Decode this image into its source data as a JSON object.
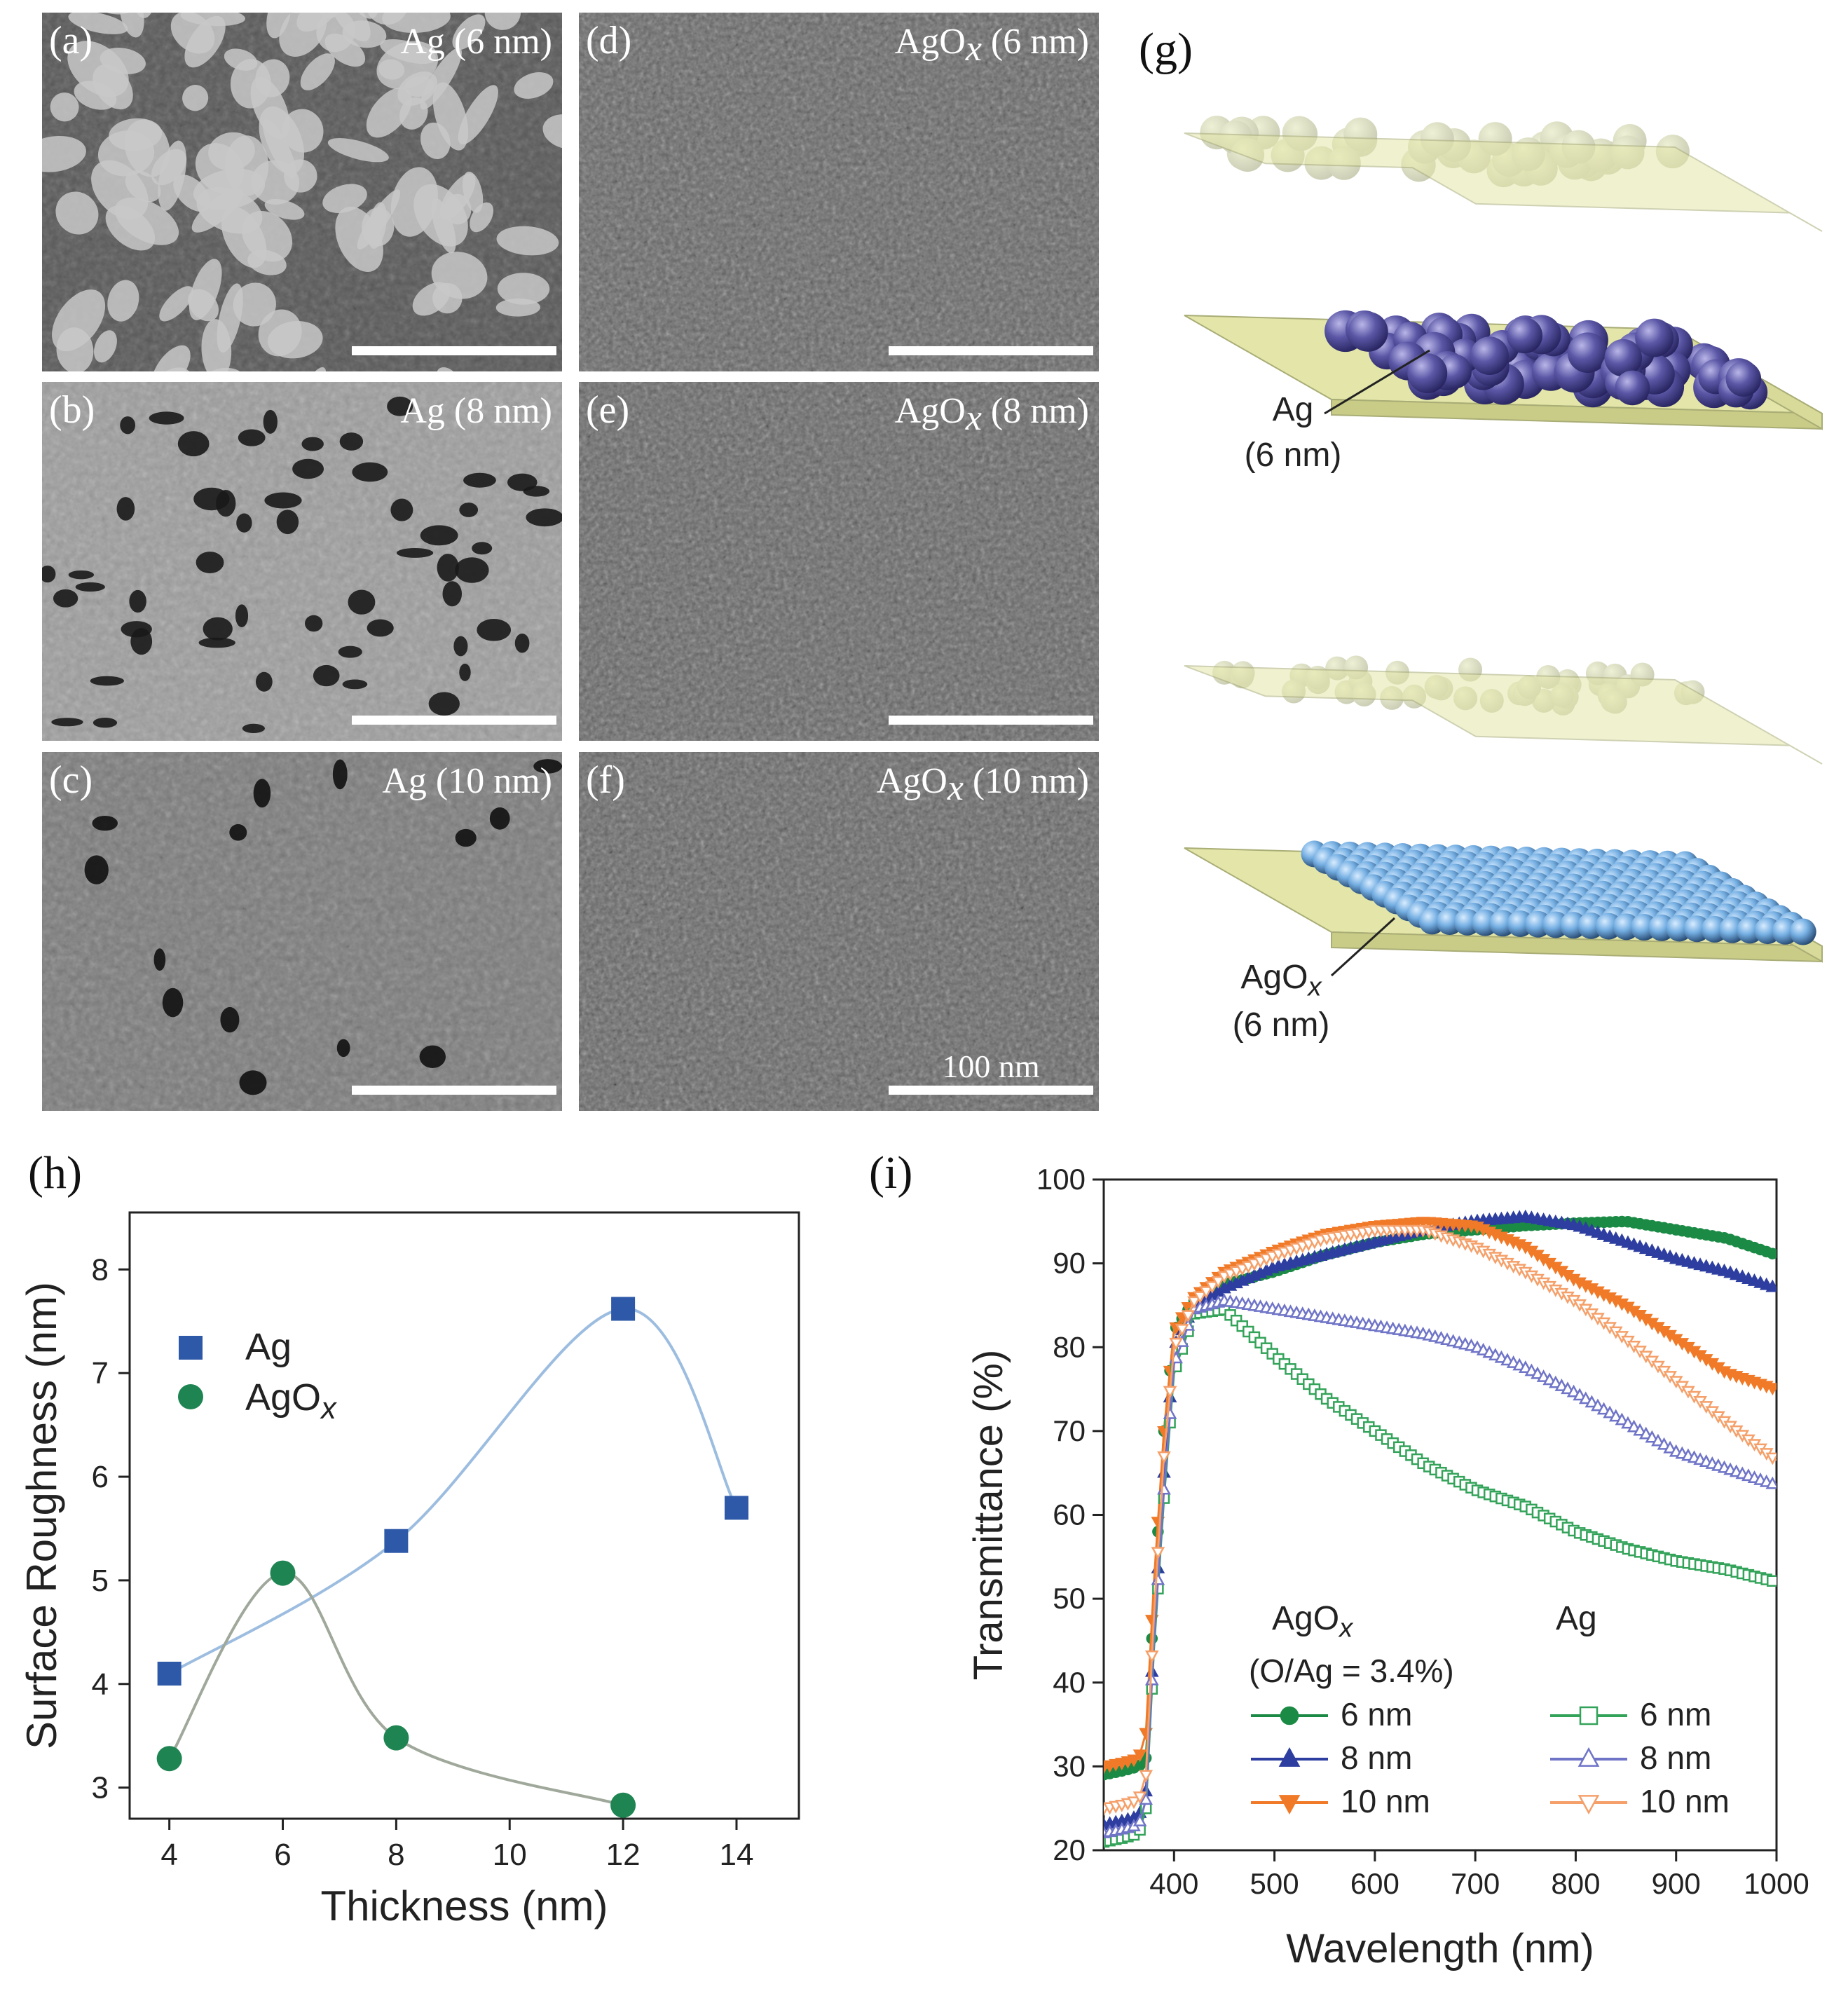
{
  "sem": {
    "panels": [
      {
        "letter": "(a)",
        "material": "Ag",
        "sub": "",
        "thickness": "(6 nm)",
        "texture": "islands"
      },
      {
        "letter": "(b)",
        "material": "Ag",
        "sub": "",
        "thickness": "(8 nm)",
        "texture": "network"
      },
      {
        "letter": "(c)",
        "material": "Ag",
        "sub": "",
        "thickness": "(10 nm)",
        "texture": "film"
      },
      {
        "letter": "(d)",
        "material": "AgO",
        "sub": "x",
        "thickness": "(6 nm)",
        "texture": "grains"
      },
      {
        "letter": "(e)",
        "material": "AgO",
        "sub": "x",
        "thickness": "(8 nm)",
        "texture": "grains"
      },
      {
        "letter": "(f)",
        "material": "AgO",
        "sub": "x",
        "thickness": "(10 nm)",
        "texture": "grains"
      }
    ],
    "scale_label": "100 nm"
  },
  "schematic": {
    "letter": "(g)",
    "top": {
      "material": "Ag",
      "sub": "",
      "thickness": "(6 nm)",
      "particle_color": "#5b57a6"
    },
    "bottom": {
      "material": "AgO",
      "sub": "x",
      "thickness": "(6 nm)",
      "particle_color": "#74aee2"
    },
    "slab_color": "#e3e6a8"
  },
  "charts": {
    "h": {
      "letter": "(h)",
      "chart_data": {
        "type": "scatter",
        "xlabel": "Thickness (nm)",
        "ylabel": "Surface Roughness (nm)",
        "xlim": [
          3.3,
          15.1
        ],
        "ylim": [
          2.7,
          8.55
        ],
        "xticks": [
          4,
          6,
          8,
          10,
          12,
          14
        ],
        "yticks": [
          3,
          4,
          5,
          6,
          7,
          8
        ],
        "legend_position": "top-left",
        "series": [
          {
            "name": "Ag",
            "marker": "square",
            "color": "#2e59a8",
            "line_color": "#9dbde0",
            "x": [
              4,
              8,
              12,
              14
            ],
            "y": [
              4.1,
              5.38,
              7.62,
              5.7
            ]
          },
          {
            "name": "AgO",
            "name_sub": "x",
            "marker": "circle",
            "color": "#1e8552",
            "line_color": "#9fa89a",
            "x": [
              4,
              6,
              8,
              12
            ],
            "y": [
              3.28,
              5.07,
              3.48,
              2.83
            ]
          }
        ]
      }
    },
    "i": {
      "letter": "(i)",
      "chart_data": {
        "type": "line",
        "xlabel": "Wavelength (nm)",
        "ylabel": "Transmittance (%)",
        "xlim": [
          330,
          1000
        ],
        "ylim": [
          20,
          100
        ],
        "xticks": [
          400,
          500,
          600,
          700,
          800,
          900,
          1000
        ],
        "yticks": [
          20,
          30,
          40,
          50,
          60,
          70,
          80,
          90,
          100
        ],
        "legend_position": "bottom-left",
        "legend_group_1": {
          "title": "AgO",
          "title_sub": "x",
          "note": "(O/Ag = 3.4%)"
        },
        "legend_group_2": {
          "title": "Ag"
        },
        "series": [
          {
            "name": "6 nm",
            "group": "AgO",
            "marker": "circle",
            "filled": true,
            "color": "#1b8a45",
            "x": [
              330,
              350,
              365,
              372,
              380,
              390,
              400,
              420,
              450,
              500,
              550,
              600,
              650,
              700,
              750,
              800,
              850,
              900,
              950,
              1000
            ],
            "y": [
              29,
              29.5,
              30,
              31,
              50,
              70,
              82,
              85.5,
              87.5,
              89,
              91,
              92.5,
              93.5,
              94,
              94.5,
              94.8,
              95,
              94,
              93,
              91
            ]
          },
          {
            "name": "8 nm",
            "group": "AgO",
            "marker": "triangle-up",
            "filled": true,
            "color": "#2d3ea0",
            "x": [
              330,
              350,
              365,
              372,
              380,
              390,
              400,
              420,
              450,
              500,
              550,
              600,
              650,
              700,
              750,
              800,
              850,
              900,
              950,
              1000
            ],
            "y": [
              23,
              23.5,
              24,
              27,
              46,
              65,
              80,
              85,
              87,
              89.5,
              91,
              92.5,
              94,
              95,
              95.5,
              94.5,
              92.5,
              90.5,
              89,
              87
            ]
          },
          {
            "name": "10 nm",
            "group": "AgO",
            "marker": "triangle-down",
            "filled": true,
            "color": "#f07a28",
            "x": [
              330,
              350,
              365,
              372,
              380,
              390,
              400,
              420,
              450,
              500,
              550,
              600,
              650,
              700,
              750,
              800,
              850,
              900,
              950,
              1000
            ],
            "y": [
              30,
              30.5,
              31,
              34,
              52,
              70,
              82,
              86,
              89,
              91.5,
              93.5,
              94.5,
              95,
              94.5,
              92,
              88,
              85,
              81,
              77,
              75
            ]
          },
          {
            "name": "6 nm",
            "group": "Ag",
            "marker": "square",
            "filled": false,
            "color": "#34a35a",
            "x": [
              330,
              350,
              365,
              372,
              380,
              390,
              400,
              420,
              450,
              500,
              550,
              600,
              650,
              700,
              750,
              800,
              850,
              900,
              950,
              1000
            ],
            "y": [
              21,
              21.5,
              22,
              25,
              44,
              62,
              77,
              84,
              84.5,
              79,
              74,
              70,
              66,
              63,
              61,
              58,
              56,
              54.5,
              53.5,
              52
            ]
          },
          {
            "name": "8 nm",
            "group": "Ag",
            "marker": "triangle-up",
            "filled": false,
            "color": "#6f74c7",
            "x": [
              330,
              350,
              365,
              372,
              380,
              390,
              400,
              420,
              450,
              500,
              550,
              600,
              650,
              700,
              750,
              800,
              850,
              900,
              950,
              1000
            ],
            "y": [
              22,
              22.5,
              23,
              26,
              45,
              63,
              78,
              84.5,
              85.5,
              84.5,
              83.5,
              82.5,
              81.5,
              80,
              77.5,
              74.5,
              71,
              67.5,
              65.5,
              63.5
            ]
          },
          {
            "name": "10 nm",
            "group": "Ag",
            "marker": "triangle-down",
            "filled": false,
            "color": "#f5a06a",
            "x": [
              330,
              350,
              365,
              372,
              380,
              390,
              400,
              420,
              450,
              500,
              550,
              600,
              650,
              700,
              750,
              800,
              850,
              900,
              950,
              1000
            ],
            "y": [
              25,
              25.5,
              26,
              29,
              48,
              67,
              80,
              85.5,
              88.5,
              91,
              93,
              94,
              94,
              92,
              89,
              85.5,
              81,
              76,
              71,
              66.5
            ]
          }
        ]
      }
    }
  }
}
